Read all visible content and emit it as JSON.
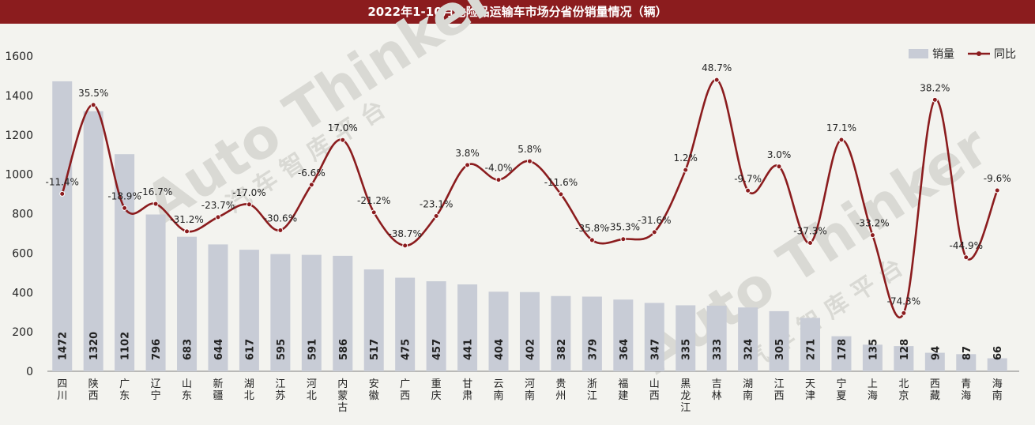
{
  "chart_data": {
    "type": "bar",
    "title": "2022年1-10月危险品运输车市场分省份销量情况（辆）",
    "categories": [
      "四川",
      "陕西",
      "广东",
      "辽宁",
      "山东",
      "新疆",
      "湖北",
      "江苏",
      "河北",
      "内蒙古",
      "安徽",
      "广西",
      "重庆",
      "甘肃",
      "云南",
      "河南",
      "贵州",
      "浙江",
      "福建",
      "山西",
      "黑龙江",
      "吉林",
      "湖南",
      "江西",
      "天津",
      "宁夏",
      "上海",
      "北京",
      "西藏",
      "青海",
      "海南"
    ],
    "series": [
      {
        "name": "销量",
        "type": "bar",
        "color": "#c8ccd6",
        "values": [
          1472,
          1320,
          1102,
          796,
          683,
          644,
          617,
          595,
          591,
          586,
          517,
          475,
          457,
          441,
          404,
          402,
          382,
          379,
          364,
          347,
          335,
          333,
          324,
          305,
          271,
          178,
          135,
          128,
          94,
          87,
          66
        ],
        "labels": [
          "1472",
          "1320",
          "1102",
          "796",
          "683",
          "644",
          "617",
          "595",
          "591",
          "586",
          "517",
          "475",
          "457",
          "441",
          "404",
          "402",
          "382",
          "379",
          "364",
          "347",
          "335",
          "333",
          "324",
          "305",
          "271",
          "178",
          "135",
          "128",
          "94",
          "87",
          "66"
        ]
      },
      {
        "name": "同比",
        "type": "line",
        "color": "#8b1c1e",
        "values": [
          -11.4,
          35.5,
          -18.9,
          -16.7,
          -31.2,
          -23.7,
          -17.0,
          -30.6,
          -6.6,
          17.0,
          -21.2,
          -38.7,
          -23.1,
          3.8,
          -4.0,
          5.8,
          -11.6,
          -35.8,
          -35.3,
          -31.6,
          1.2,
          48.7,
          -9.7,
          3.0,
          -37.3,
          17.1,
          -33.2,
          -74.3,
          38.2,
          -44.9,
          -9.6
        ],
        "labels": [
          "-11.4%",
          "35.5%",
          "-18.9%",
          "-16.7%",
          "-31.2%",
          "-23.7%",
          "-17.0%",
          "-30.6%",
          "-6.6%",
          "17.0%",
          "-21.2%",
          "-38.7%",
          "-23.1%",
          "3.8%",
          "-4.0%",
          "5.8%",
          "-11.6%",
          "-35.8%",
          "-35.3%",
          "-31.6%",
          "1.2%",
          "48.7%",
          "-9.7%",
          "3.0%",
          "-37.3%",
          "17.1%",
          "-33.2%",
          "-74.3%",
          "38.2%",
          "-44.9%",
          "-9.6%"
        ]
      }
    ],
    "ylim": [
      0,
      1600
    ],
    "yticks": [
      "0",
      "200",
      "400",
      "600",
      "800",
      "1000",
      "1200",
      "1400",
      "1600"
    ],
    "legend_position": "top-right",
    "grid": false
  },
  "watermark": [
    "Auto Thinker",
    "汽 车 智 库 平 台"
  ]
}
